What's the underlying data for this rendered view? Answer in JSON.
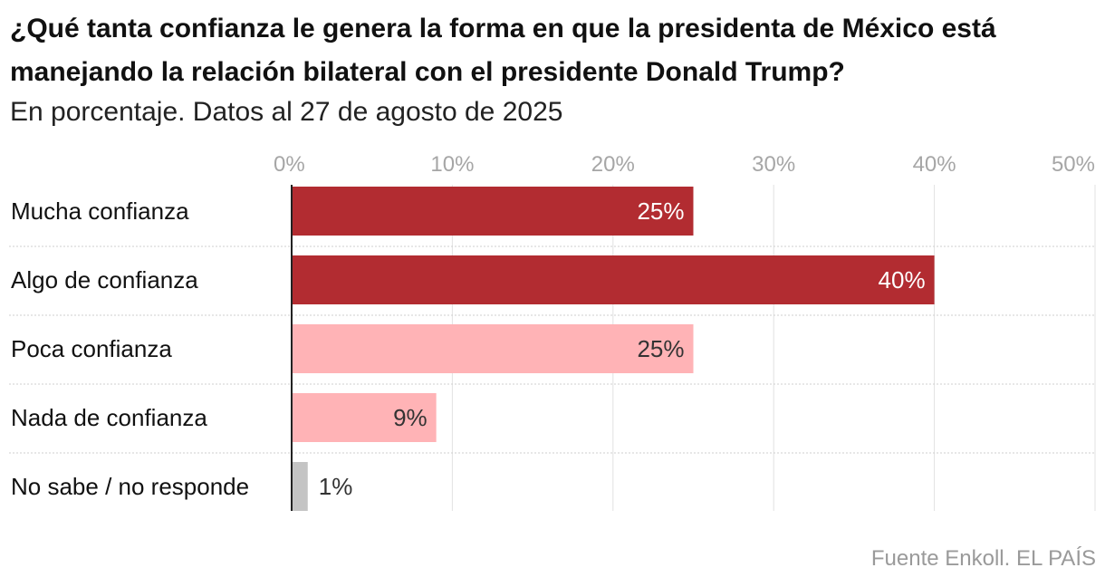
{
  "title": "¿Qué tanta confianza le genera la forma en que la presidenta de México está manejando la relación bilateral con el presidente Donald Trump?",
  "subtitle": "En porcentaje. Datos al 27 de agosto de 2025",
  "source": "Fuente Enkoll. EL PAÍS",
  "colors": {
    "dark_red": "#b22c31",
    "light_pink": "#ffb3b6",
    "gray": "#c4c4c4",
    "axis_text": "#a6a6a6",
    "grid": "#e2e2e2"
  },
  "chart_data": {
    "type": "bar",
    "orientation": "horizontal",
    "title": "¿Qué tanta confianza le genera la forma en que la presidenta de México está manejando la relación bilateral con el presidente Donald Trump?",
    "subtitle": "En porcentaje. Datos al 27 de agosto de 2025",
    "categories": [
      "Mucha confianza",
      "Algo de confianza",
      "Poca confianza",
      "Nada de confianza",
      "No sabe / no responde"
    ],
    "values": [
      25,
      40,
      25,
      9,
      1
    ],
    "value_labels": [
      "25%",
      "40%",
      "25%",
      "9%",
      "1%"
    ],
    "bar_colors": [
      "#b22c31",
      "#b22c31",
      "#ffb3b6",
      "#ffb3b6",
      "#c4c4c4"
    ],
    "label_colors": [
      "#ffffff",
      "#ffffff",
      "#333333",
      "#333333",
      "#333333"
    ],
    "label_position": [
      "inside",
      "inside",
      "inside",
      "inside",
      "outside"
    ],
    "xlim": [
      0,
      50
    ],
    "xticks": [
      0,
      10,
      20,
      30,
      40,
      50
    ],
    "xtick_labels": [
      "0%",
      "10%",
      "20%",
      "30%",
      "40%",
      "50%"
    ],
    "grid": true,
    "xlabel": "",
    "ylabel": ""
  }
}
